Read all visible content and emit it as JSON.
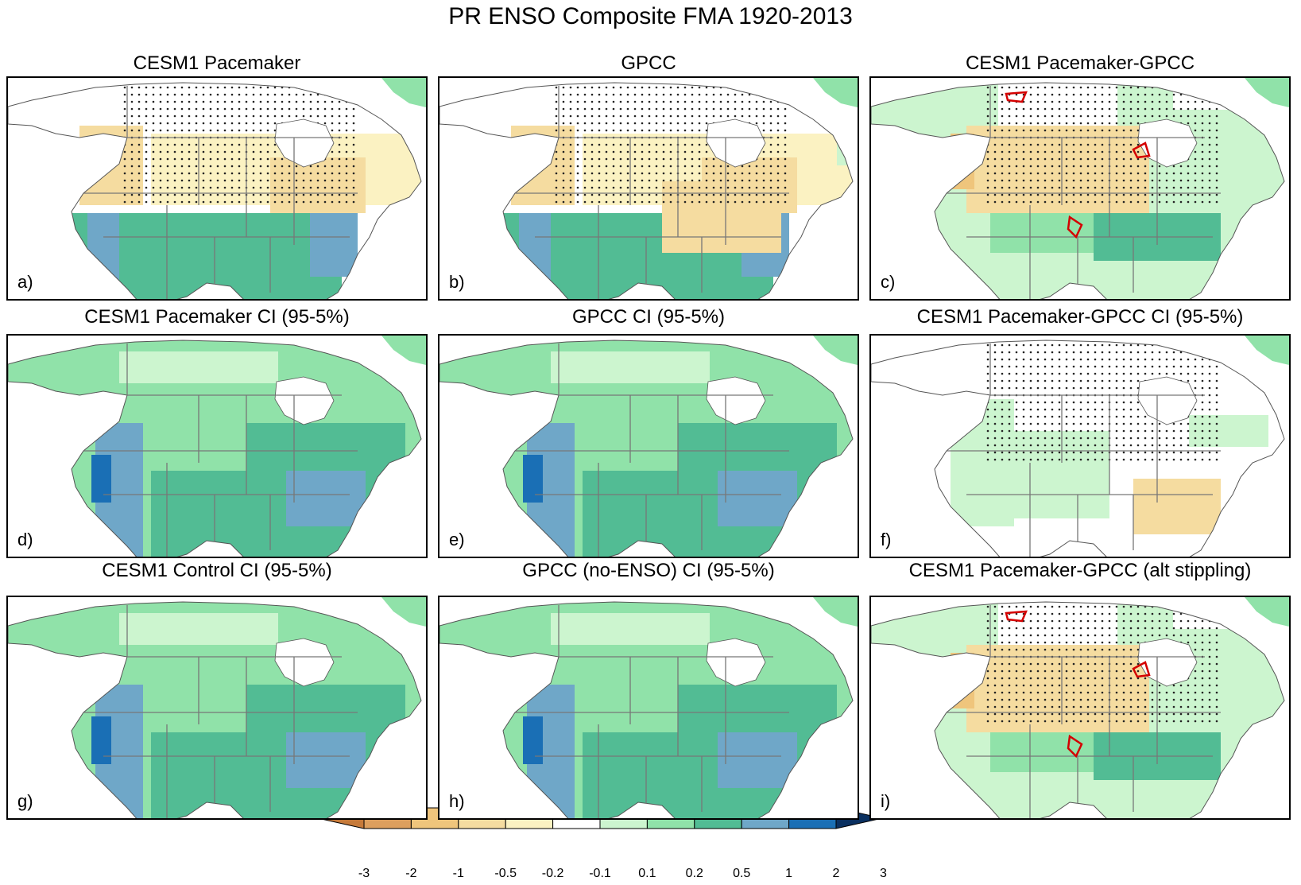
{
  "title": "PR ENSO Composite FMA 1920-2013",
  "panels": [
    {
      "label": "a)",
      "title": "CESM1 Pacemaker",
      "pattern": "composite",
      "stipple": true,
      "red_contours": false
    },
    {
      "label": "b)",
      "title": "GPCC",
      "pattern": "composite_obs",
      "stipple": true,
      "red_contours": false
    },
    {
      "label": "c)",
      "title": "CESM1 Pacemaker-GPCC",
      "pattern": "difference",
      "stipple": true,
      "red_contours": true
    },
    {
      "label": "d)",
      "title": "CESM1 Pacemaker CI (95-5%)",
      "pattern": "ci",
      "stipple": false,
      "red_contours": false
    },
    {
      "label": "e)",
      "title": "GPCC CI (95-5%)",
      "pattern": "ci",
      "stipple": false,
      "red_contours": false
    },
    {
      "label": "f)",
      "title": "CESM1 Pacemaker-GPCC CI (95-5%)",
      "pattern": "ci_diff",
      "stipple": true,
      "red_contours": false
    },
    {
      "label": "g)",
      "title": "CESM1 Control CI (95-5%)",
      "pattern": "ci",
      "stipple": false,
      "red_contours": false
    },
    {
      "label": "h)",
      "title": "GPCC (no-ENSO) CI (95-5%)",
      "pattern": "ci",
      "stipple": false,
      "red_contours": false
    },
    {
      "label": "i)",
      "title": "CESM1 Pacemaker-GPCC (alt stippling)",
      "pattern": "difference",
      "stipple": true,
      "red_contours": true
    }
  ],
  "colorbar": {
    "labels": [
      "-3",
      "-2",
      "-1",
      "-0.5",
      "-0.2",
      "-0.1",
      "0.1",
      "0.2",
      "0.5",
      "1",
      "2",
      "3"
    ],
    "colors": [
      "#c67a3a",
      "#dd9f5e",
      "#efc57c",
      "#f5dca0",
      "#fbf2c2",
      "#ffffff",
      "#ccf5cf",
      "#90e2a9",
      "#52bc94",
      "#6fa7c8",
      "#1a6fb5",
      "#0a3060"
    ]
  }
}
